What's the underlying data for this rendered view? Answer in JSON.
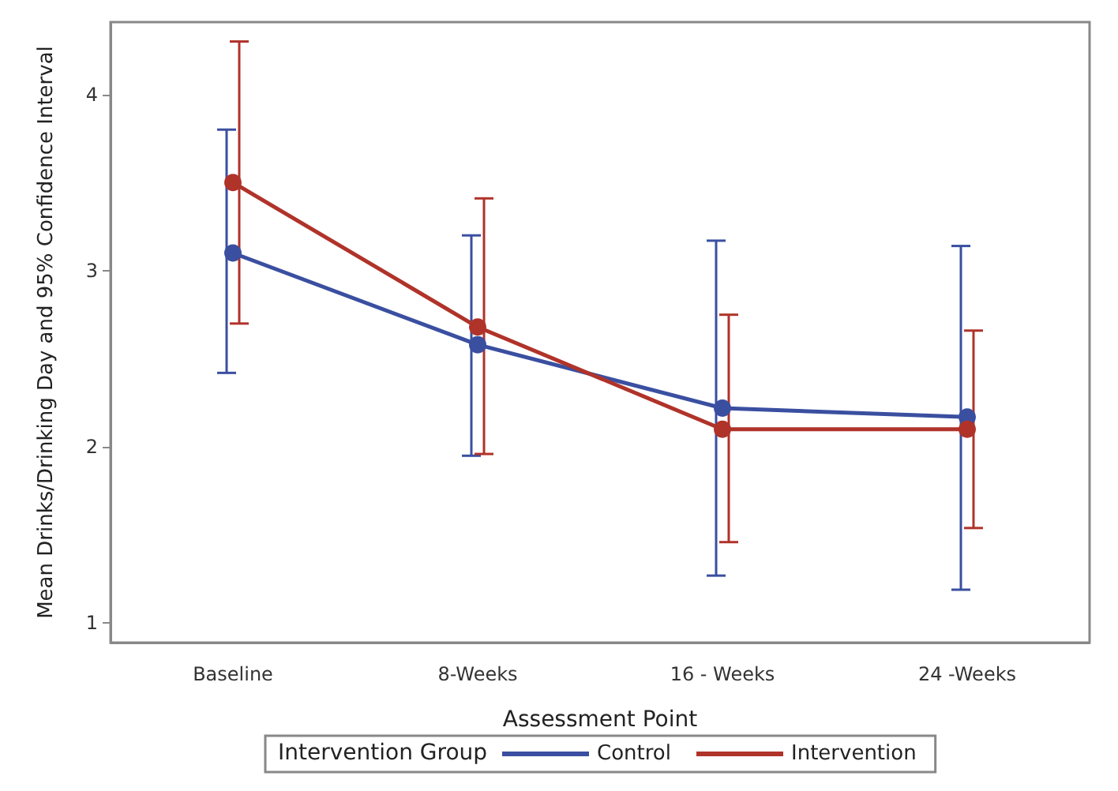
{
  "chart_data": {
    "type": "line",
    "xlabel": "Assessment Point",
    "ylabel": "Mean Drinks/Drinking Day and 95% Confidence Interval",
    "legend_title": "Intervention Group",
    "categories": [
      "Baseline",
      "8-Weeks",
      "16 - Weeks",
      "24 -Weeks"
    ],
    "series": [
      {
        "name": "Control",
        "color": "#3a4fa0",
        "values": [
          3.1,
          2.58,
          2.22,
          2.17
        ],
        "errors": [
          [
            2.42,
            3.8
          ],
          [
            1.95,
            3.2
          ],
          [
            1.27,
            3.17
          ],
          [
            1.19,
            3.14
          ]
        ]
      },
      {
        "name": "Intervention",
        "color": "#b0332a",
        "values": [
          3.5,
          2.68,
          2.1,
          2.1
        ],
        "errors": [
          [
            2.7,
            4.3
          ],
          [
            1.96,
            3.41
          ],
          [
            1.46,
            2.75
          ],
          [
            1.54,
            2.66
          ]
        ]
      }
    ],
    "ylim": [
      0.89,
      4.41
    ],
    "yticks": [
      1,
      2,
      3,
      4
    ],
    "grid": false,
    "legend": "bottom",
    "marker": "circle",
    "line_style": "solid"
  }
}
